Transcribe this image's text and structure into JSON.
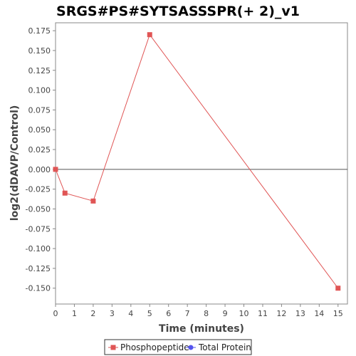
{
  "chart_data": {
    "type": "line",
    "title": "SRGS#PS#SYTSASSSPR(+ 2)_v1",
    "xlabel": "Time (minutes)",
    "ylabel": "log2(dDAVP/Control)",
    "xlim": [
      0,
      15.5
    ],
    "ylim": [
      -0.17,
      0.185
    ],
    "x_ticks": [
      0,
      1,
      2,
      3,
      4,
      5,
      6,
      7,
      8,
      9,
      10,
      11,
      12,
      13,
      14,
      15
    ],
    "y_ticks": [
      -0.15,
      -0.125,
      -0.1,
      -0.075,
      -0.05,
      -0.025,
      0.0,
      0.025,
      0.05,
      0.075,
      0.1,
      0.125,
      0.15,
      0.175
    ],
    "y_tick_labels": [
      "-0.150",
      "-0.125",
      "-0.100",
      "-0.075",
      "-0.050",
      "-0.025",
      "0.000",
      "0.025",
      "0.050",
      "0.075",
      "0.100",
      "0.125",
      "0.150",
      "0.175"
    ],
    "grid": false,
    "zero_line": true,
    "legend_position": "bottom",
    "series": [
      {
        "name": "Phosphopeptide",
        "color": "#e05555",
        "marker": "square",
        "x": [
          0,
          0.5,
          2,
          5,
          15
        ],
        "y": [
          0.0,
          -0.03,
          -0.04,
          0.17,
          -0.15
        ]
      },
      {
        "name": "Total Protein",
        "color": "#5555ee",
        "marker": "circle",
        "x": [],
        "y": []
      }
    ]
  }
}
